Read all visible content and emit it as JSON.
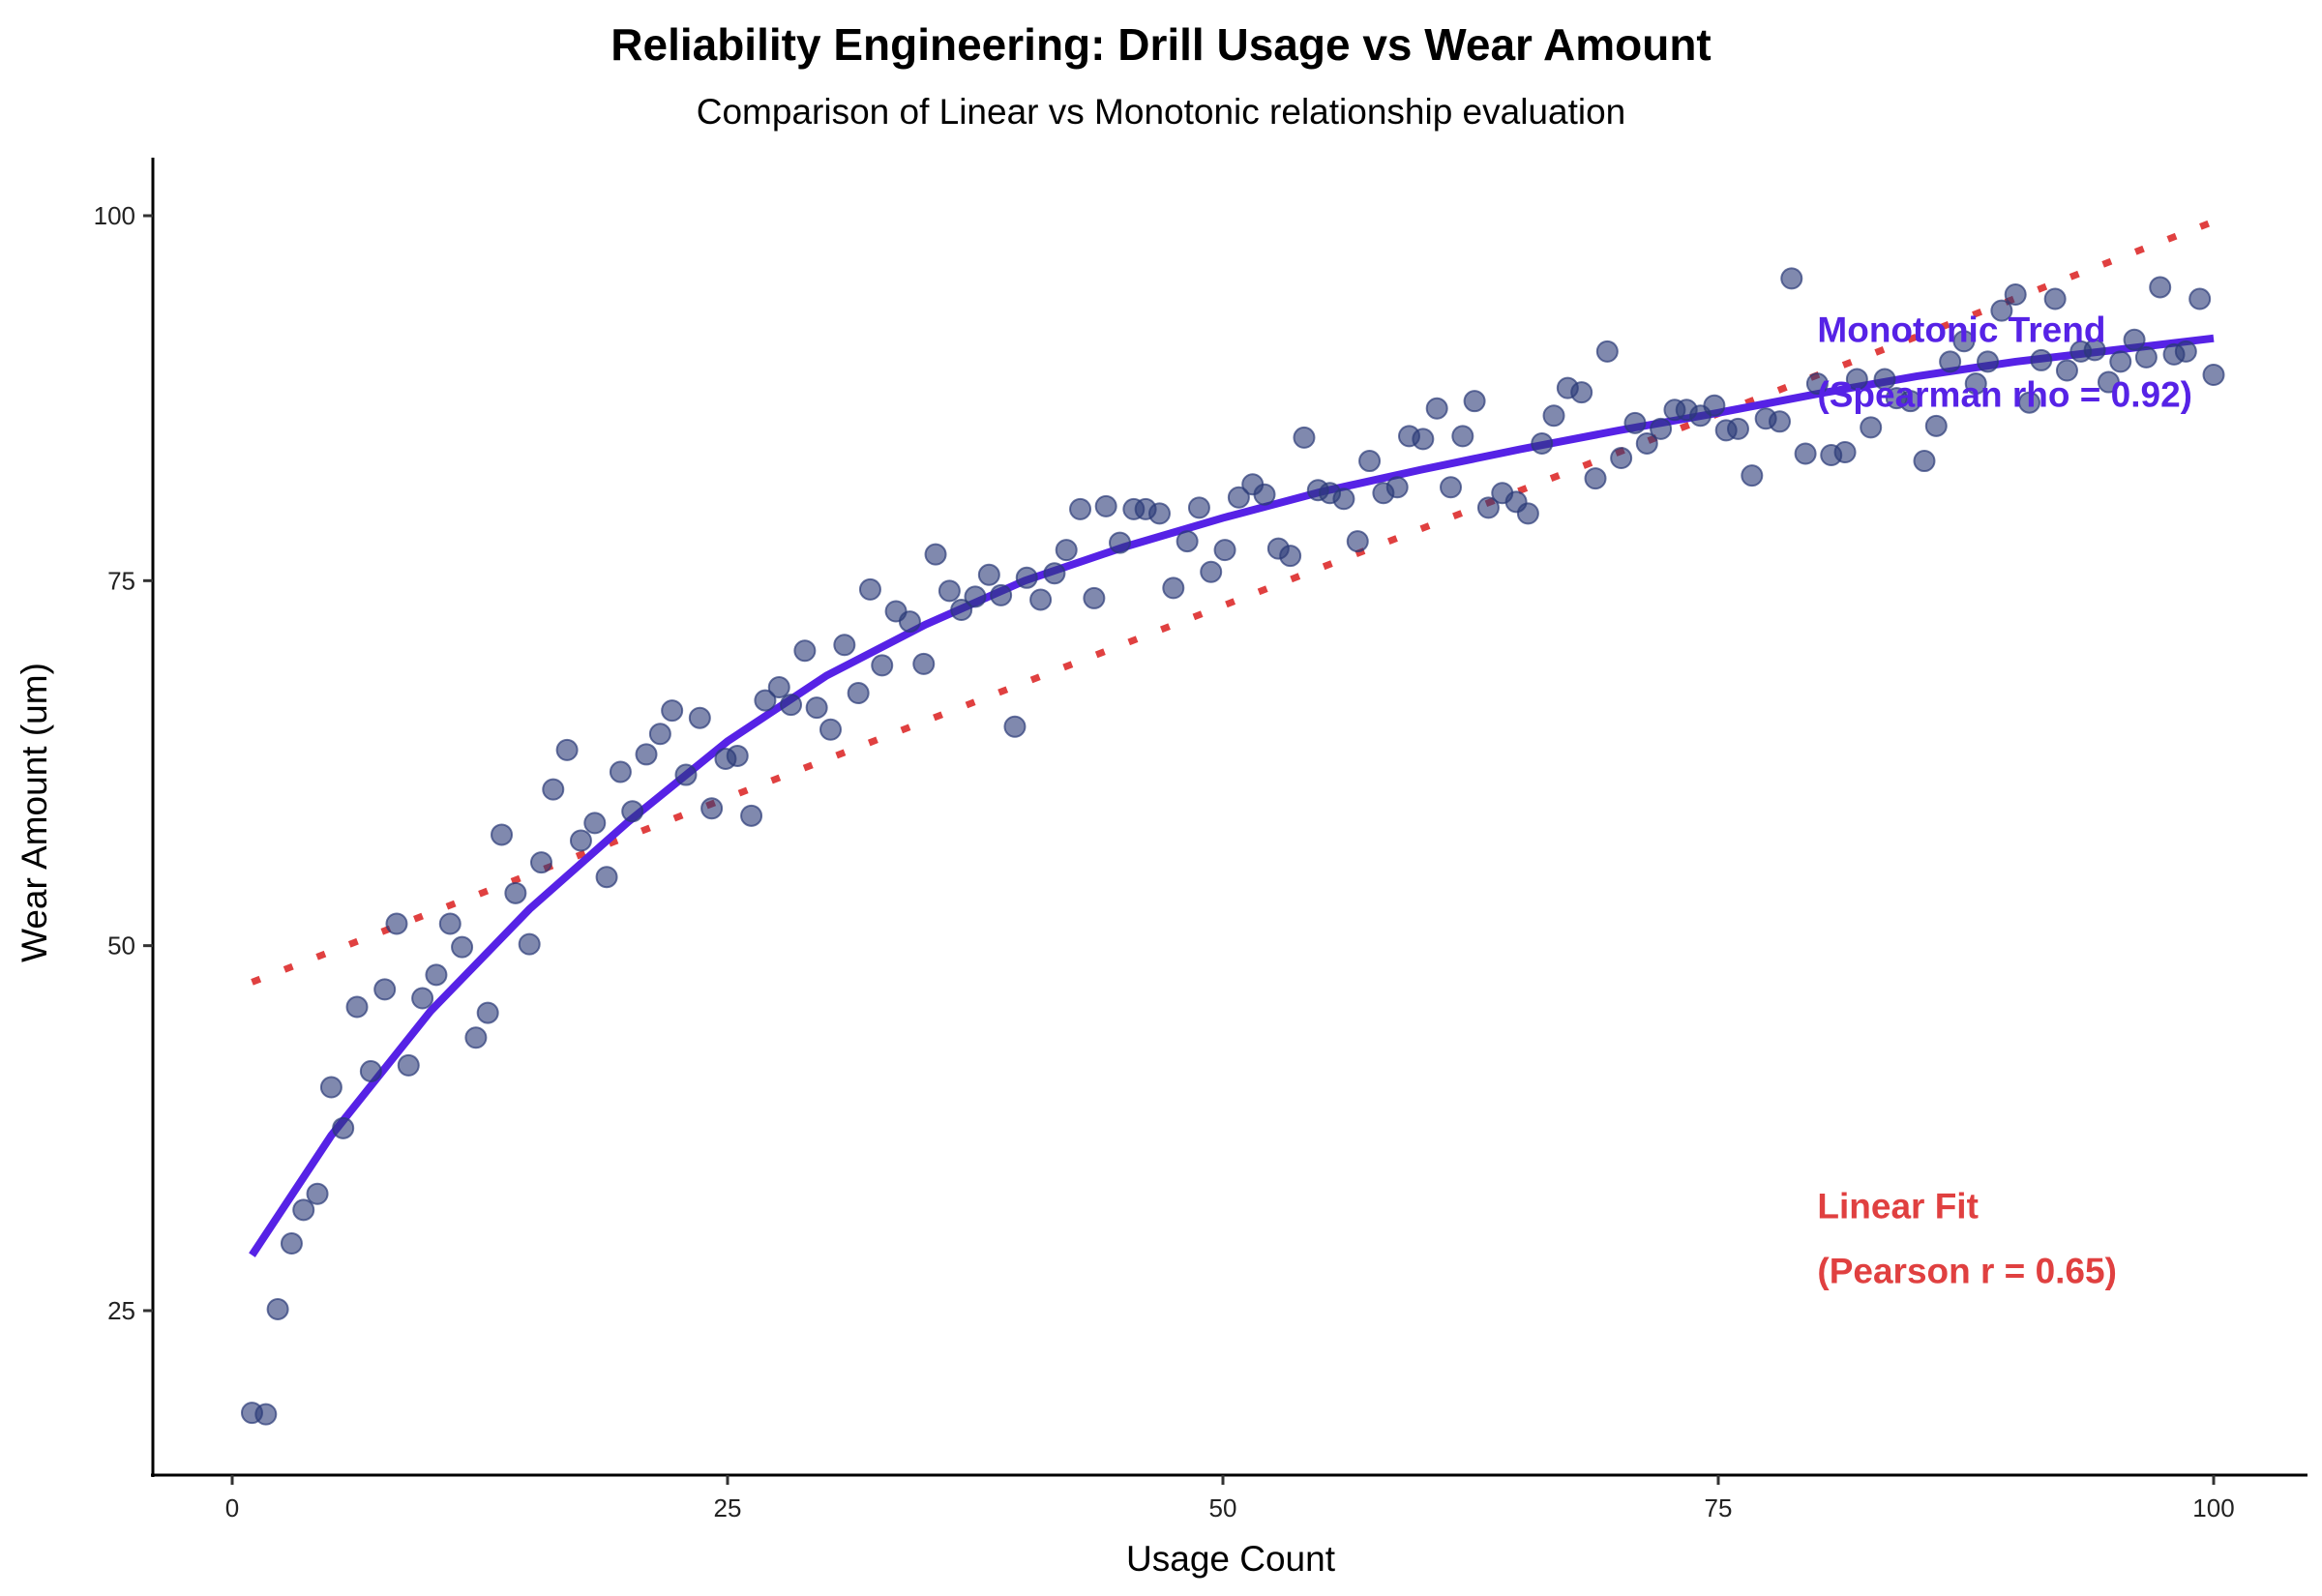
{
  "chart_data": {
    "type": "scatter",
    "title": "Reliability Engineering: Drill Usage vs Wear Amount",
    "subtitle": "Comparison of Linear vs Monotonic relationship evaluation",
    "xlabel": "Usage Count",
    "ylabel": "Wear Amount (um)",
    "xlim": [
      -4,
      105
    ],
    "ylim": [
      14,
      103.5
    ],
    "xticks": [
      0,
      25,
      50,
      75,
      100
    ],
    "yticks": [
      25,
      50,
      75,
      100
    ],
    "grid": false,
    "colors": {
      "points": "#2b3a78",
      "linear": "#e04040",
      "monotonic": "#5622e6"
    },
    "points": [
      [
        1.0,
        18.0
      ],
      [
        1.7,
        17.9
      ],
      [
        2.3,
        25.1
      ],
      [
        3.0,
        29.6
      ],
      [
        3.6,
        31.9
      ],
      [
        4.3,
        33.0
      ],
      [
        5.0,
        40.3
      ],
      [
        5.6,
        37.5
      ],
      [
        6.3,
        45.8
      ],
      [
        7.0,
        41.4
      ],
      [
        7.7,
        47.0
      ],
      [
        8.3,
        51.5
      ],
      [
        8.9,
        41.8
      ],
      [
        9.6,
        46.4
      ],
      [
        10.3,
        48.0
      ],
      [
        11.0,
        51.5
      ],
      [
        11.6,
        49.9
      ],
      [
        12.3,
        43.7
      ],
      [
        12.9,
        45.4
      ],
      [
        13.6,
        57.6
      ],
      [
        14.3,
        53.6
      ],
      [
        15.0,
        50.1
      ],
      [
        15.6,
        55.7
      ],
      [
        16.2,
        60.7
      ],
      [
        16.9,
        63.4
      ],
      [
        17.6,
        57.2
      ],
      [
        18.3,
        58.4
      ],
      [
        18.9,
        54.7
      ],
      [
        19.6,
        61.9
      ],
      [
        20.2,
        59.2
      ],
      [
        20.9,
        63.1
      ],
      [
        21.6,
        64.5
      ],
      [
        22.2,
        66.1
      ],
      [
        22.9,
        61.7
      ],
      [
        23.6,
        65.6
      ],
      [
        24.2,
        59.4
      ],
      [
        24.9,
        62.8
      ],
      [
        25.5,
        63.0
      ],
      [
        26.2,
        58.9
      ],
      [
        26.9,
        66.8
      ],
      [
        27.6,
        67.7
      ],
      [
        28.2,
        66.5
      ],
      [
        28.9,
        70.2
      ],
      [
        29.5,
        66.3
      ],
      [
        30.2,
        64.8
      ],
      [
        30.9,
        70.6
      ],
      [
        31.6,
        67.3
      ],
      [
        32.2,
        74.4
      ],
      [
        32.8,
        69.2
      ],
      [
        33.5,
        72.9
      ],
      [
        34.2,
        72.2
      ],
      [
        34.9,
        69.3
      ],
      [
        35.5,
        76.8
      ],
      [
        36.2,
        74.3
      ],
      [
        36.8,
        73.0
      ],
      [
        37.5,
        73.9
      ],
      [
        38.2,
        75.4
      ],
      [
        38.8,
        74.0
      ],
      [
        39.5,
        65.0
      ],
      [
        40.1,
        75.2
      ],
      [
        40.8,
        73.7
      ],
      [
        41.5,
        75.5
      ],
      [
        42.1,
        77.1
      ],
      [
        42.8,
        79.9
      ],
      [
        43.5,
        73.8
      ],
      [
        44.1,
        80.1
      ],
      [
        44.8,
        77.6
      ],
      [
        45.5,
        79.9
      ],
      [
        46.1,
        79.9
      ],
      [
        46.8,
        79.6
      ],
      [
        47.5,
        74.5
      ],
      [
        48.2,
        77.7
      ],
      [
        48.8,
        80.0
      ],
      [
        49.4,
        75.6
      ],
      [
        50.1,
        77.1
      ],
      [
        50.8,
        80.7
      ],
      [
        51.5,
        81.6
      ],
      [
        52.1,
        80.9
      ],
      [
        52.8,
        77.2
      ],
      [
        53.4,
        76.7
      ],
      [
        54.1,
        84.8
      ],
      [
        54.8,
        81.2
      ],
      [
        55.4,
        81.0
      ],
      [
        56.1,
        80.6
      ],
      [
        56.8,
        77.7
      ],
      [
        57.4,
        83.2
      ],
      [
        58.1,
        81.0
      ],
      [
        58.8,
        81.4
      ],
      [
        59.4,
        84.9
      ],
      [
        60.1,
        84.7
      ],
      [
        60.8,
        86.8
      ],
      [
        61.5,
        81.4
      ],
      [
        62.1,
        84.9
      ],
      [
        62.7,
        87.3
      ],
      [
        63.4,
        80.0
      ],
      [
        64.1,
        81.0
      ],
      [
        64.8,
        80.4
      ],
      [
        65.4,
        79.6
      ],
      [
        66.1,
        84.4
      ],
      [
        66.7,
        86.3
      ],
      [
        67.4,
        88.2
      ],
      [
        68.1,
        87.9
      ],
      [
        68.8,
        82.0
      ],
      [
        69.4,
        90.7
      ],
      [
        70.1,
        83.4
      ],
      [
        70.8,
        85.8
      ],
      [
        71.4,
        84.4
      ],
      [
        72.1,
        85.4
      ],
      [
        72.8,
        86.7
      ],
      [
        73.4,
        86.7
      ],
      [
        74.1,
        86.3
      ],
      [
        74.8,
        87.0
      ],
      [
        75.4,
        85.3
      ],
      [
        76.0,
        85.4
      ],
      [
        76.7,
        82.2
      ],
      [
        77.4,
        86.1
      ],
      [
        78.1,
        85.9
      ],
      [
        78.7,
        95.7
      ],
      [
        79.4,
        83.7
      ],
      [
        80.0,
        88.5
      ],
      [
        80.7,
        83.6
      ],
      [
        81.4,
        83.8
      ],
      [
        82.0,
        88.8
      ],
      [
        82.7,
        85.5
      ],
      [
        83.4,
        88.8
      ],
      [
        84.0,
        87.5
      ],
      [
        84.7,
        87.3
      ],
      [
        85.4,
        83.2
      ],
      [
        86.0,
        85.6
      ],
      [
        86.7,
        90.0
      ],
      [
        87.4,
        91.4
      ],
      [
        88.0,
        88.5
      ],
      [
        88.6,
        90.0
      ],
      [
        89.3,
        93.5
      ],
      [
        90.0,
        94.6
      ],
      [
        90.7,
        87.2
      ],
      [
        91.3,
        90.1
      ],
      [
        92.0,
        94.3
      ],
      [
        92.6,
        89.4
      ],
      [
        93.3,
        90.7
      ],
      [
        94.0,
        90.8
      ],
      [
        94.7,
        88.6
      ],
      [
        95.3,
        90.0
      ],
      [
        96.0,
        91.5
      ],
      [
        96.6,
        90.3
      ],
      [
        97.3,
        95.1
      ],
      [
        98.0,
        90.5
      ],
      [
        98.6,
        90.7
      ],
      [
        99.3,
        94.3
      ],
      [
        100.0,
        89.1
      ]
    ],
    "linear_fit": {
      "x": [
        1,
        100
      ],
      "y": [
        47.5,
        99.6
      ]
    },
    "monotonic_fit": {
      "x": [
        1,
        5,
        10,
        15,
        20,
        25,
        30,
        35,
        40,
        45,
        50,
        55,
        60,
        65,
        70,
        75,
        80,
        85,
        90,
        95,
        100
      ],
      "y": [
        28.8,
        37,
        45.5,
        52.5,
        58.5,
        64,
        68.5,
        72,
        75,
        77.3,
        79.3,
        81.1,
        82.6,
        84,
        85.3,
        86.5,
        87.8,
        89,
        90,
        90.8,
        91.6
      ]
    },
    "annotations": {
      "monotonic": {
        "line1": "Monotonic Trend",
        "line2": "(Spearman rho = 0.92)",
        "x": 80,
        "y": 92.2
      },
      "linear": {
        "line1": "Linear Fit",
        "line2": "(Pearson r = 0.65)",
        "x": 80,
        "y": 32.2
      }
    }
  }
}
